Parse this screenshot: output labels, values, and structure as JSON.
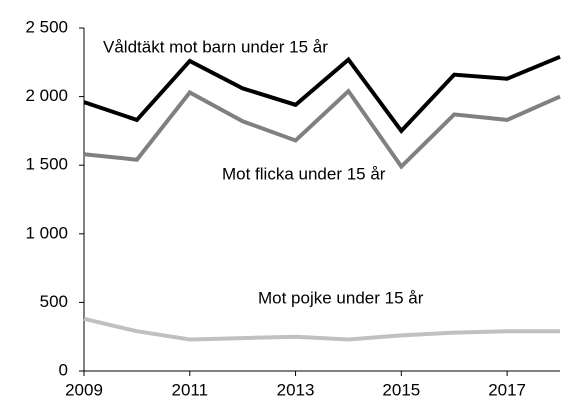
{
  "chart_data": {
    "type": "line",
    "x": [
      2009,
      2010,
      2011,
      2012,
      2013,
      2014,
      2015,
      2016,
      2017,
      2018
    ],
    "series": [
      {
        "name": "Våldtäkt mot barn under 15 år",
        "color": "#000000",
        "values": [
          1960,
          1830,
          2260,
          2060,
          1940,
          2270,
          1750,
          2160,
          2130,
          2290
        ]
      },
      {
        "name": "Mot flicka under 15 år",
        "color": "#808080",
        "values": [
          1580,
          1540,
          2030,
          1820,
          1680,
          2040,
          1490,
          1870,
          1830,
          2000
        ]
      },
      {
        "name": "Mot pojke under 15 år",
        "color": "#c0c0c0",
        "values": [
          380,
          290,
          230,
          240,
          250,
          230,
          260,
          280,
          290,
          290
        ]
      }
    ],
    "xlim": [
      2009,
      2018
    ],
    "xticks": [
      2009,
      2011,
      2013,
      2015,
      2017
    ],
    "ylim": [
      0,
      2500
    ],
    "yticks": [
      0,
      500,
      {
        "value": 1000,
        "label": "1 000"
      },
      {
        "value": 1500,
        "label": "1 500"
      },
      {
        "value": 2000,
        "label": "2 000"
      },
      {
        "value": 2500,
        "label": "2 500"
      }
    ],
    "grid": false
  }
}
